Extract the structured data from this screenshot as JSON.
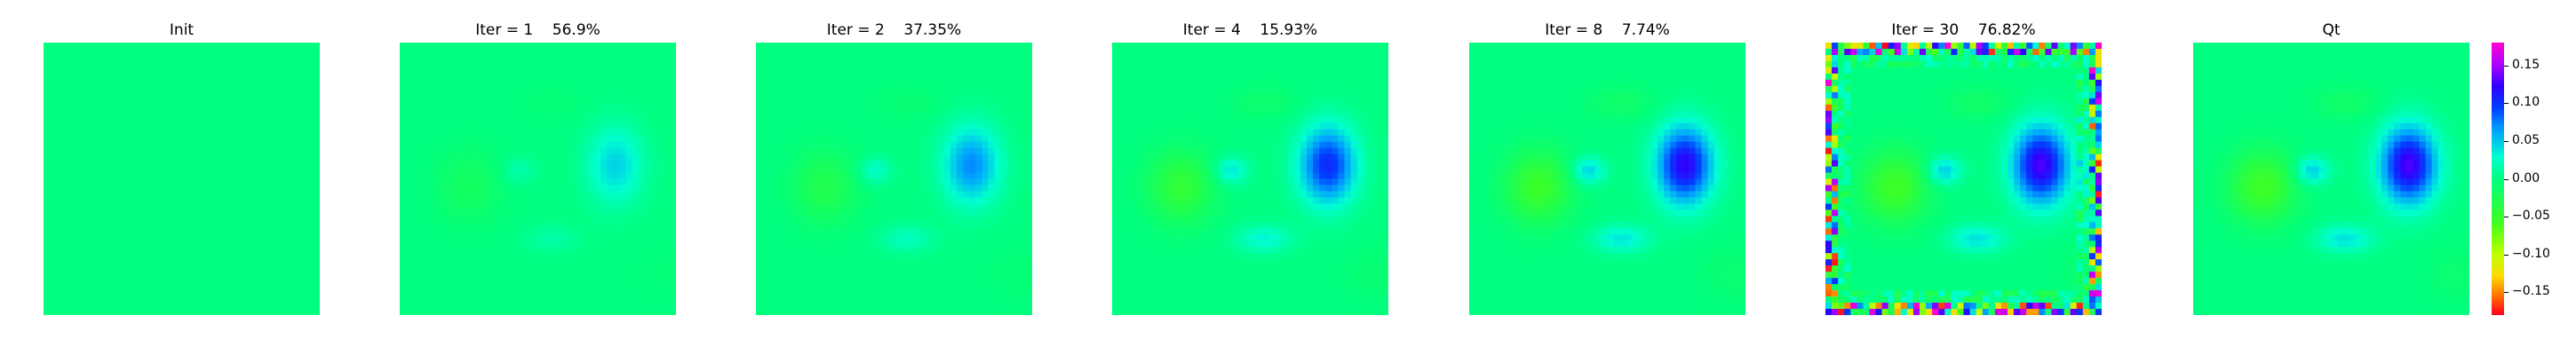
{
  "chart_data": {
    "type": "heatmap",
    "panels": [
      {
        "title": "Init",
        "pattern": "uniform",
        "strength": 0.0
      },
      {
        "title": "Iter = 1    56.9%",
        "pattern": "field",
        "strength": 0.35
      },
      {
        "title": "Iter = 2    37.35%",
        "pattern": "field",
        "strength": 0.55
      },
      {
        "title": "Iter = 4    15.93%",
        "pattern": "field",
        "strength": 0.8
      },
      {
        "title": "Iter = 8    7.74%",
        "pattern": "field",
        "strength": 0.95
      },
      {
        "title": "Iter = 30    76.82%",
        "pattern": "noisy",
        "strength": 1.0
      },
      {
        "title": "Qt",
        "pattern": "field",
        "strength": 1.0
      }
    ],
    "colorbar": {
      "colormap": "gist_rainbow",
      "range": [
        -0.18,
        0.18
      ],
      "ticks": [
        0.15,
        0.1,
        0.05,
        0.0,
        -0.05,
        -0.1,
        -0.15
      ],
      "tick_labels": [
        "0.15",
        "0.10",
        "0.05",
        "0.00",
        "−0.05",
        "−0.10",
        "−0.15"
      ]
    }
  }
}
